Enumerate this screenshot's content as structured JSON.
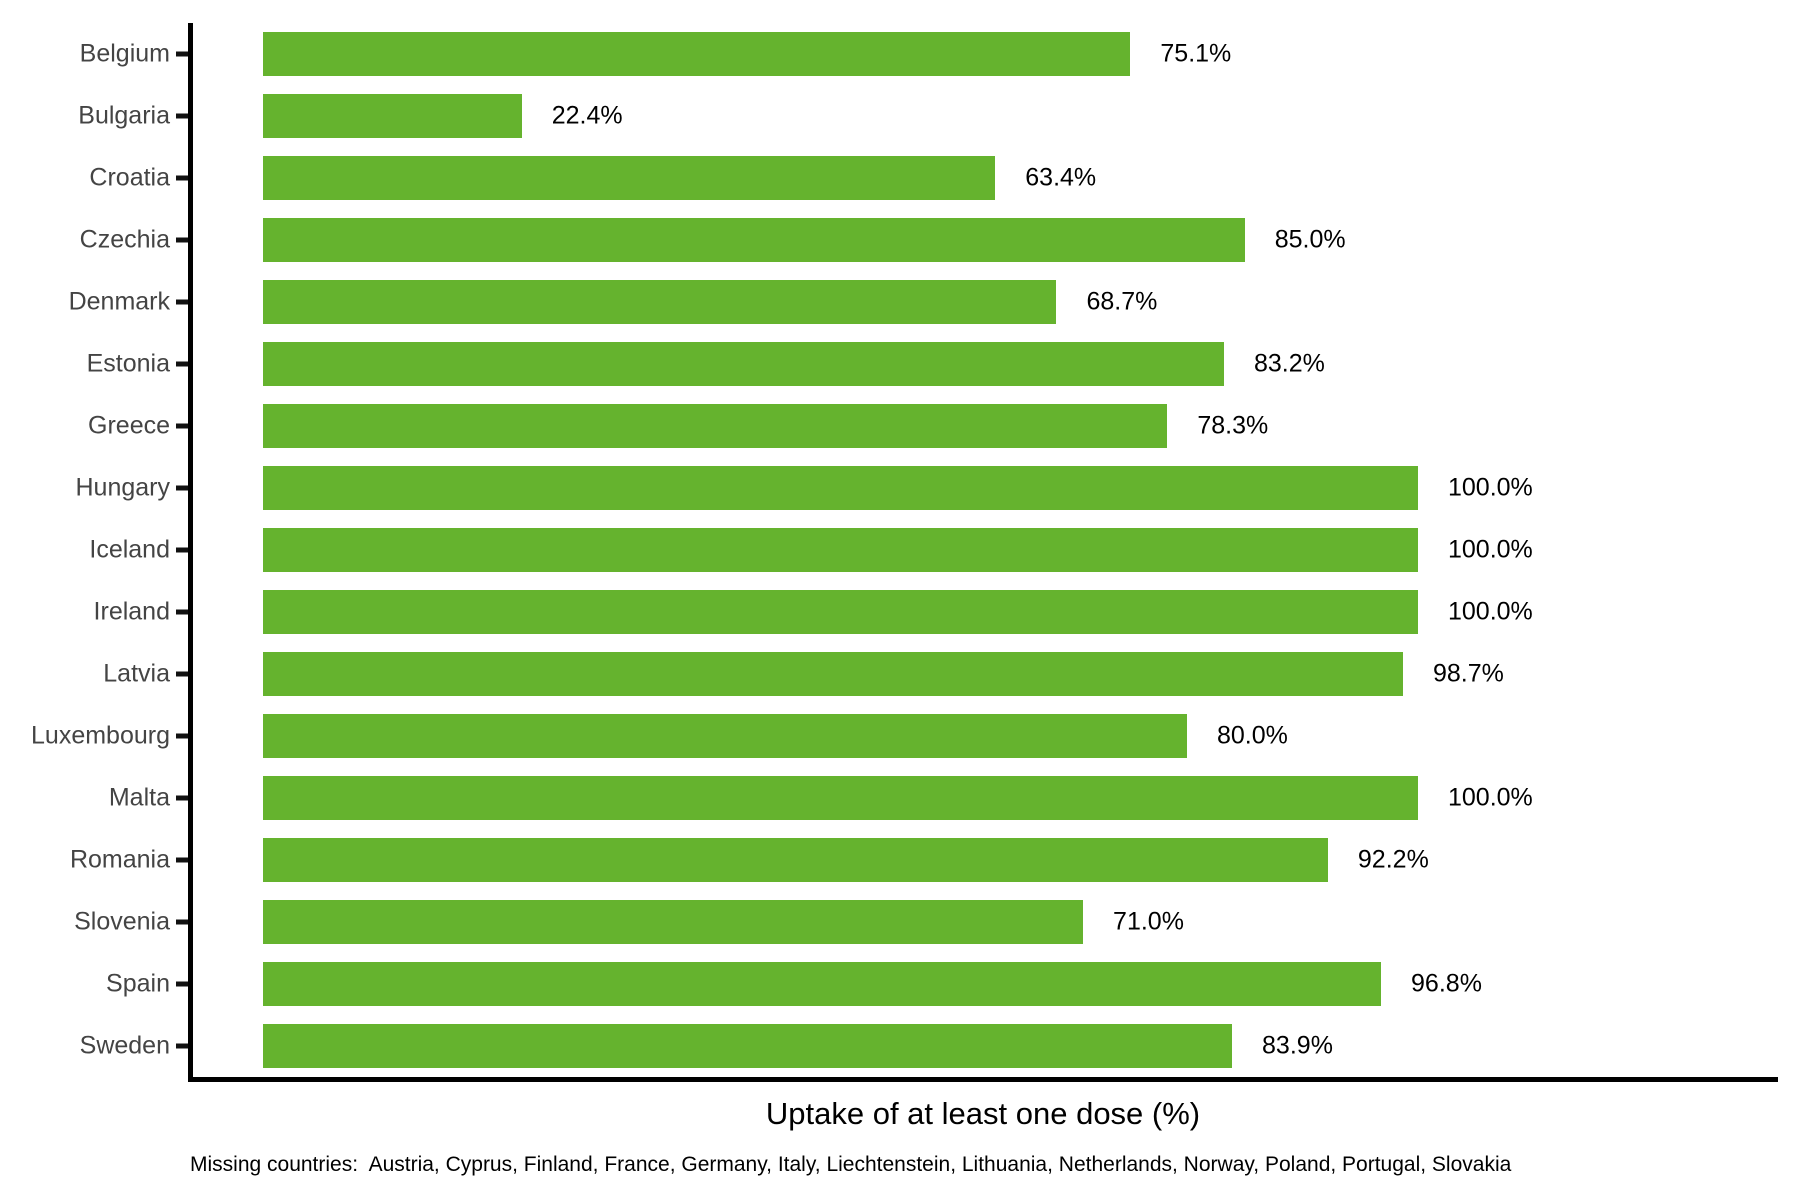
{
  "figure": {
    "xlabel": "Uptake of at least one dose (%)",
    "footnote": "Missing countries:  Austria, Cyprus, Finland, France, Germany, Italy, Liechtenstein, Lithuania, Netherlands, Norway, Poland, Portugal, Slovakia"
  },
  "chart_data": {
    "type": "bar",
    "orientation": "horizontal",
    "title": "",
    "xlabel": "Uptake of at least one dose (%)",
    "ylabel": "",
    "xlim": [
      0,
      100
    ],
    "grid": false,
    "legend": false,
    "categories": [
      "Belgium",
      "Bulgaria",
      "Croatia",
      "Czechia",
      "Denmark",
      "Estonia",
      "Greece",
      "Hungary",
      "Iceland",
      "Ireland",
      "Latvia",
      "Luxembourg",
      "Malta",
      "Romania",
      "Slovenia",
      "Spain",
      "Sweden"
    ],
    "values": [
      75.1,
      22.4,
      63.4,
      85.0,
      68.7,
      83.2,
      78.3,
      100.0,
      100.0,
      100.0,
      98.7,
      80.0,
      100.0,
      92.2,
      71.0,
      96.8,
      83.9
    ],
    "value_label_suffix": "%",
    "bar_color": "#65B32E",
    "axis_text_color": "#444444",
    "value_text_color": "#000000",
    "axis_line_color": "#000000",
    "footnote": "Missing countries:  Austria, Cyprus, Finland, France, Germany, Italy, Liechtenstein, Lithuania, Netherlands, Norway, Poland, Portugal, Slovakia"
  }
}
